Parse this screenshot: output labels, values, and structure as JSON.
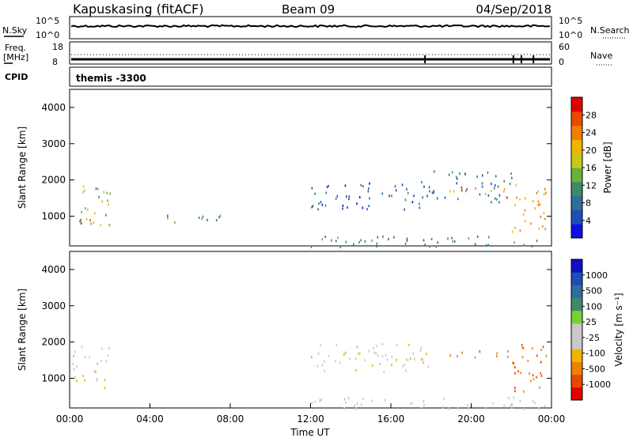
{
  "header": {
    "station": "Kapuskasing (fitACF)",
    "beam": "Beam 09",
    "date": "04/Sep/2018"
  },
  "strips": {
    "nsky_label": "N.Sky",
    "nsearch_label": "N.Search",
    "freq_label_1": "Freq.",
    "freq_label_2": "[MHz]",
    "nave_label": "Nave",
    "cpid_label": "CPID",
    "cpid_value": "themis -3300",
    "noise_ticks_left": [
      "10^5",
      "10^0"
    ],
    "noise_ticks_right": [
      "10^5",
      "10^0"
    ],
    "freq_ticks": [
      "18",
      "8"
    ],
    "nave_ticks": [
      "60",
      "0"
    ]
  },
  "x_axis": {
    "label": "Time UT",
    "ticks": [
      "00:00",
      "04:00",
      "08:00",
      "12:00",
      "16:00",
      "20:00",
      "00:00"
    ]
  },
  "colors": {
    "power_scale": [
      "#1010e0",
      "#1e4fb8",
      "#2e6e9a",
      "#3d8a6a",
      "#6ab33a",
      "#c8c818",
      "#f0b400",
      "#f08000",
      "#e84800",
      "#e00000"
    ],
    "velocity_scale": [
      "#e00000",
      "#e84800",
      "#f08000",
      "#f0b400",
      "#c8c8c8",
      "#c8c8c8",
      "#7ad032",
      "#3d8a6a",
      "#2e6e9a",
      "#1e4fb8",
      "#1010c0"
    ]
  },
  "chart_data": [
    {
      "type": "heatmap",
      "name": "power",
      "ylabel": "Slant Range [km]",
      "xlabel": "",
      "y_ticks": [
        "1000",
        "2000",
        "3000",
        "4000"
      ],
      "ylim": [
        180,
        4500
      ],
      "xlim_hours": [
        0,
        24
      ],
      "colorbar": {
        "label": "Power [dB]",
        "ticks": [
          "4",
          "8",
          "12",
          "16",
          "20",
          "24",
          "28"
        ],
        "range": [
          0,
          30
        ]
      },
      "regions": [
        {
          "t0": 0.1,
          "t1": 2.0,
          "r0": 750,
          "r1": 1900,
          "value": 14
        },
        {
          "t0": 0.5,
          "t1": 1.5,
          "r0": 780,
          "r1": 1000,
          "value": 26
        },
        {
          "t0": 4.5,
          "t1": 7.5,
          "r0": 800,
          "r1": 1100,
          "value": 12
        },
        {
          "t0": 12.0,
          "t1": 18.0,
          "r0": 1200,
          "r1": 2000,
          "value": 6
        },
        {
          "t0": 18.0,
          "t1": 22.0,
          "r0": 1400,
          "r1": 2300,
          "value": 8
        },
        {
          "t0": 18.5,
          "t1": 22.0,
          "r0": 1550,
          "r1": 1800,
          "value": 18
        },
        {
          "t0": 22.0,
          "t1": 23.8,
          "r0": 600,
          "r1": 2000,
          "value": 20
        },
        {
          "t0": 12.0,
          "t1": 24.0,
          "r0": 180,
          "r1": 500,
          "value": 10
        }
      ]
    },
    {
      "type": "heatmap",
      "name": "velocity",
      "ylabel": "Slant Range [km]",
      "xlabel": "Time UT",
      "y_ticks": [
        "1000",
        "2000",
        "3000",
        "4000"
      ],
      "ylim": [
        180,
        4500
      ],
      "xlim_hours": [
        0,
        24
      ],
      "colorbar": {
        "label": "Velocity [m s⁻¹]",
        "ticks": [
          "-1000",
          "-500",
          "-100",
          "-25",
          "25",
          "100",
          "500",
          "1000"
        ]
      },
      "regions": [
        {
          "t0": 0.1,
          "t1": 2.0,
          "r0": 750,
          "r1": 1900,
          "value": 0
        },
        {
          "t0": 12.0,
          "t1": 18.0,
          "r0": 1200,
          "r1": 2000,
          "value": 0
        },
        {
          "t0": 18.5,
          "t1": 22.0,
          "r0": 1550,
          "r1": 1800,
          "value": -150
        },
        {
          "t0": 22.0,
          "t1": 23.8,
          "r0": 600,
          "r1": 2000,
          "value": -500
        },
        {
          "t0": 12.0,
          "t1": 24.0,
          "r0": 180,
          "r1": 500,
          "value": 50
        }
      ]
    }
  ]
}
